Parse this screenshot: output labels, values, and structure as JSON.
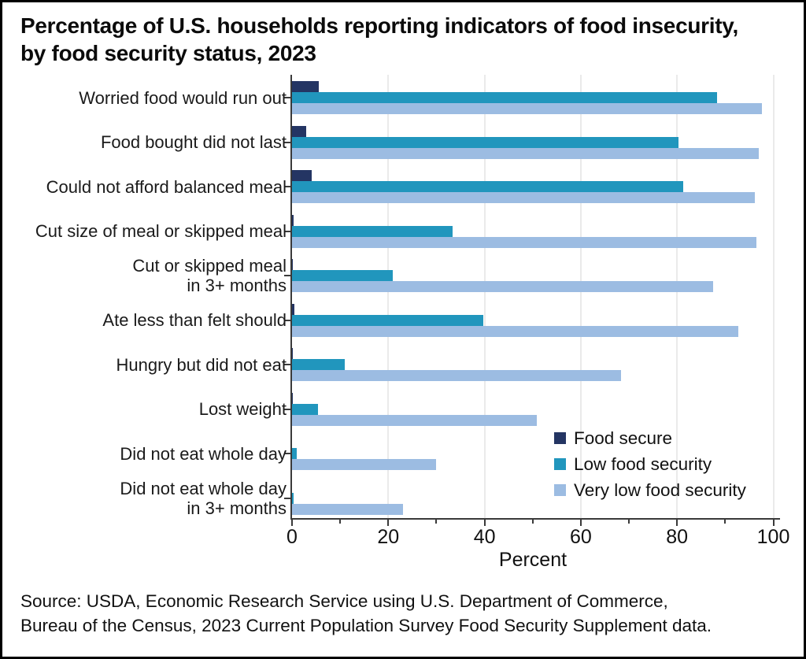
{
  "title": {
    "line1": "Percentage of U.S. households reporting indicators of food insecurity,",
    "line2": "by food security status, 2023"
  },
  "chart_data": {
    "type": "bar",
    "orientation": "horizontal",
    "title": "Percentage of U.S. households reporting indicators of food insecurity, by food security status, 2023",
    "xlabel": "Percent",
    "xlim": [
      0,
      100
    ],
    "x_major_ticks": [
      0,
      20,
      40,
      60,
      80,
      100
    ],
    "x_minor_ticks": [
      10,
      30,
      50,
      70,
      90
    ],
    "grid": "vertical gridlines at major ticks",
    "legend_position": "inside bottom-right",
    "categories": [
      "Worried food would run out",
      "Food bought did not last",
      "Could not afford balanced meal",
      "Cut size of meal or skipped meal",
      "Cut or skipped meal\nin 3+ months",
      "Ate less than felt should",
      "Hungry but did not eat",
      "Lost weight",
      "Did not eat whole day",
      "Did not eat whole day\nin 3+ months"
    ],
    "series": [
      {
        "name": "Food secure",
        "color": "#243563",
        "values": [
          5.5,
          3.0,
          4.1,
          0.3,
          0.1,
          0.5,
          0.1,
          0.1,
          0.0,
          0.0
        ]
      },
      {
        "name": "Low food security",
        "color": "#2196BD",
        "values": [
          88.3,
          80.3,
          81.2,
          33.4,
          20.9,
          39.8,
          10.9,
          5.4,
          0.9,
          0.4
        ]
      },
      {
        "name": "Very low food security",
        "color": "#9CBCE2",
        "values": [
          97.7,
          97.0,
          96.1,
          96.5,
          87.5,
          92.8,
          68.3,
          50.9,
          30.0,
          23.1
        ]
      }
    ]
  },
  "source": {
    "line1": "Source: USDA, Economic Research Service using U.S. Department of Commerce,",
    "line2": "Bureau of the Census, 2023 Current Population Survey Food Security Supplement data."
  },
  "colors": {
    "background": "#FFFFFF",
    "border": "#000000",
    "axis": "#3A3A3A",
    "gridline": "#EAEAEA",
    "text": "#1A1A1A"
  }
}
